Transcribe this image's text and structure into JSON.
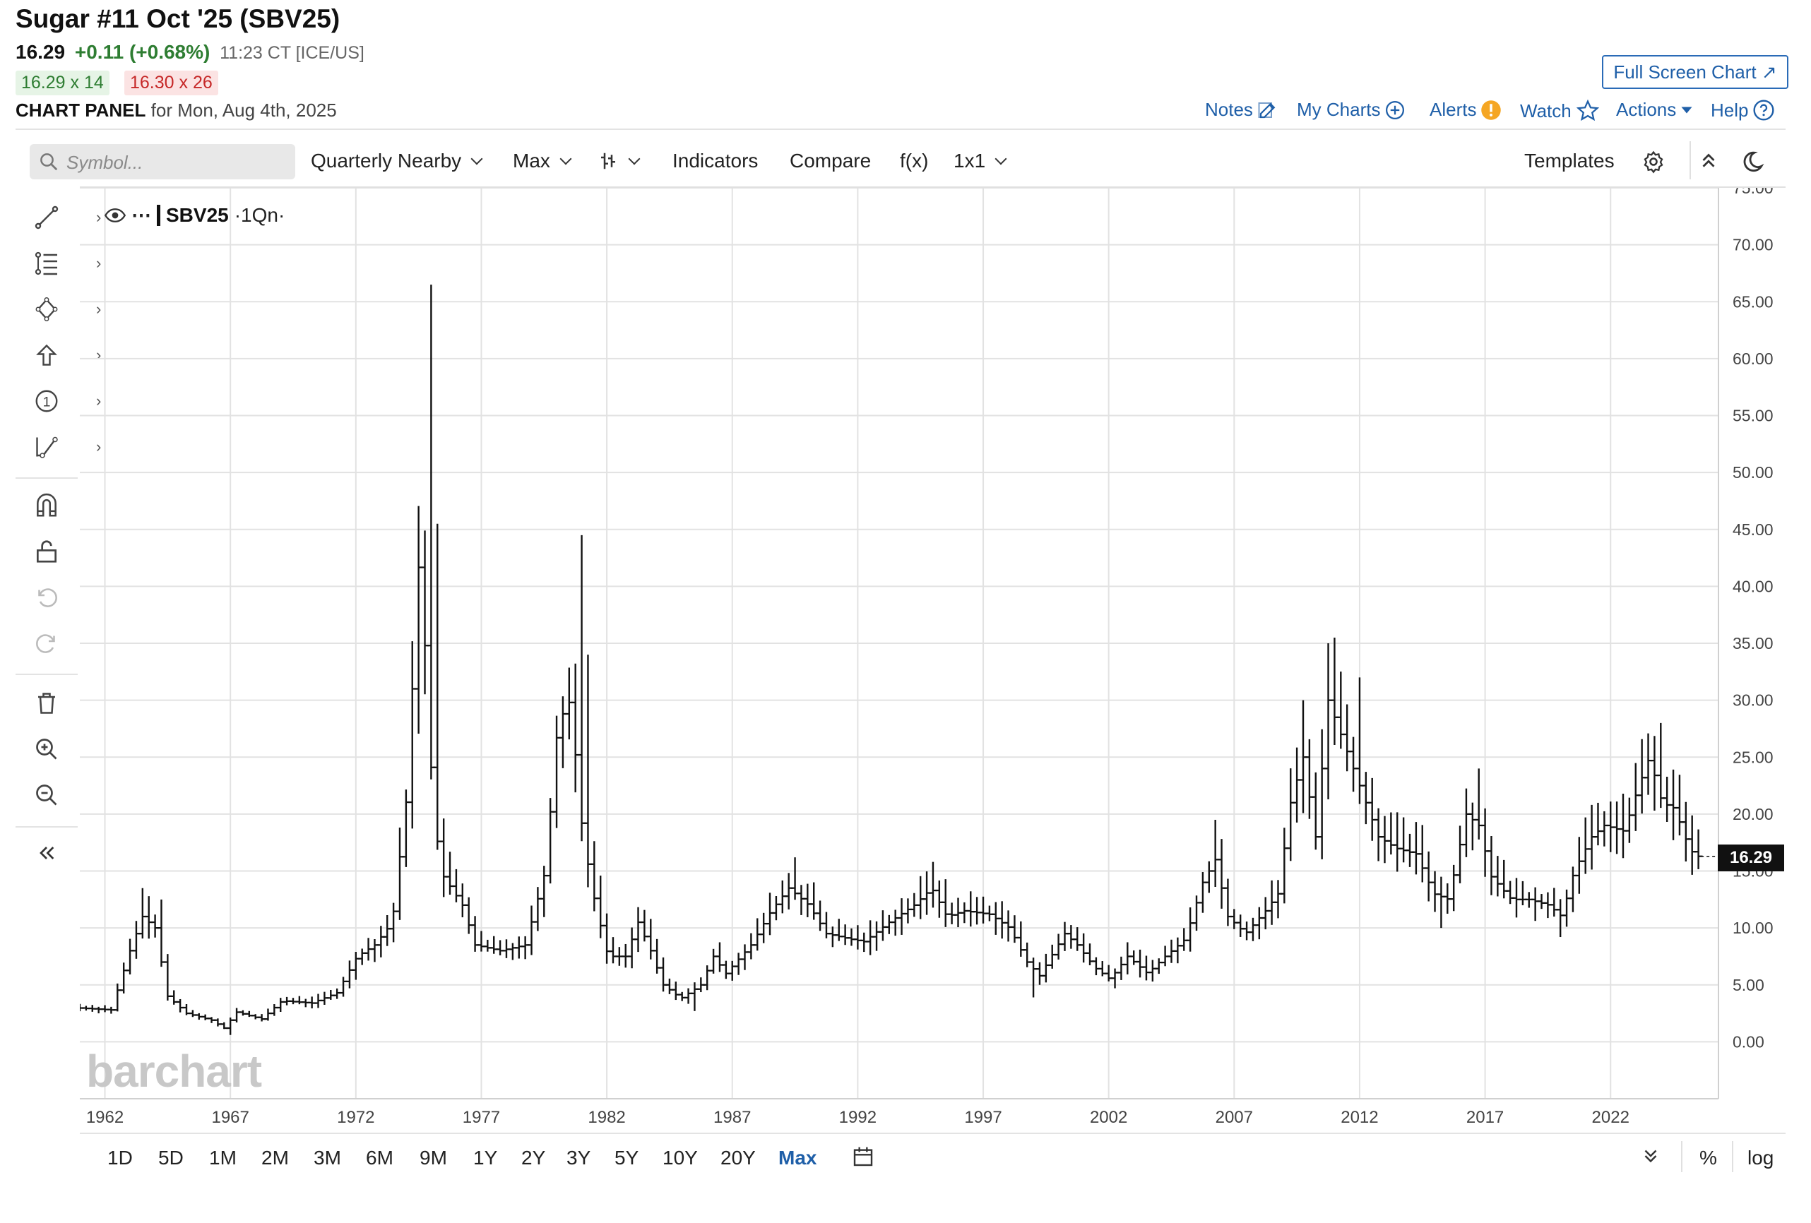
{
  "header": {
    "title": "Sugar #11 Oct '25 (SBV25)",
    "last": "16.29",
    "change": "+0.11 (+0.68%)",
    "time": "11:23 CT [ICE/US]",
    "bid": "16.29 x 14",
    "ask": "16.30 x 26",
    "panel_label": "CHART PANEL",
    "panel_date": "for Mon, Aug 4th, 2025",
    "full_screen": "Full Screen Chart",
    "links": {
      "notes": "Notes",
      "my_charts": "My Charts",
      "alerts": "Alerts",
      "watch": "Watch",
      "actions": "Actions",
      "help": "Help"
    }
  },
  "toolbar": {
    "symbol_placeholder": "Symbol...",
    "period": "Quarterly Nearby",
    "range": "Max",
    "indicators": "Indicators",
    "compare": "Compare",
    "fx": "f(x)",
    "layout": "1x1",
    "templates": "Templates"
  },
  "legend": {
    "symbol": "SBV25",
    "interval": "·1Qn·"
  },
  "price_tag": "16.29",
  "watermark": "barchart",
  "bottom": {
    "ranges": [
      "1D",
      "5D",
      "1M",
      "2M",
      "3M",
      "6M",
      "9M",
      "1Y",
      "2Y",
      "3Y",
      "5Y",
      "10Y",
      "20Y",
      "Max"
    ],
    "active": "Max",
    "percent": "%",
    "log": "log"
  },
  "icons": [
    "search-icon",
    "edit-icon",
    "plus-circle-icon",
    "alert-icon",
    "star-icon",
    "caret-down-icon",
    "help-icon",
    "bar-style-icon",
    "gear-icon",
    "collapse-icon",
    "moon-icon",
    "eye-icon",
    "calendar-icon",
    "trend-line-icon",
    "fib-icon",
    "shape-icon",
    "arrow-icon",
    "number-icon",
    "measure-icon",
    "magnet-icon",
    "lock-icon",
    "undo-icon",
    "redo-icon",
    "trash-icon",
    "zoom-in-icon",
    "zoom-out-icon",
    "chevron-left-icon"
  ],
  "colors": {
    "accent": "#1f5fa8",
    "up": "#2e7d32",
    "down": "#c62828",
    "bars": "#111111"
  },
  "chart_data": {
    "type": "bar",
    "style": "OHLC",
    "symbol": "SBV25",
    "interval": "quarterly",
    "ylim": [
      -5,
      75
    ],
    "y_ticks": [
      0,
      5,
      10,
      15,
      20,
      25,
      30,
      35,
      40,
      45,
      50,
      55,
      60,
      65,
      70,
      75
    ],
    "x_ticks": [
      "1962",
      "1967",
      "1972",
      "1977",
      "1982",
      "1987",
      "1992",
      "1997",
      "2002",
      "2007",
      "2012",
      "2017",
      "2022"
    ],
    "x_range": [
      1961.0,
      2026.3
    ],
    "last_price": 16.29,
    "grid": true,
    "anchors": [
      [
        1961.0,
        3.0
      ],
      [
        1962.5,
        2.8
      ],
      [
        1963.25,
        8.0
      ],
      [
        1963.75,
        11.0
      ],
      [
        1964.25,
        10.0
      ],
      [
        1964.75,
        4.0
      ],
      [
        1965.5,
        2.5
      ],
      [
        1966.5,
        1.9
      ],
      [
        1967.0,
        1.2
      ],
      [
        1967.5,
        2.6
      ],
      [
        1968.5,
        2.0
      ],
      [
        1969.3,
        3.6
      ],
      [
        1970.5,
        3.4
      ],
      [
        1971.5,
        4.3
      ],
      [
        1972.3,
        7.5
      ],
      [
        1973.0,
        8.5
      ],
      [
        1973.7,
        10.5
      ],
      [
        1974.3,
        22.0
      ],
      [
        1974.7,
        40.0
      ],
      [
        1974.85,
        45.0
      ],
      [
        1975.1,
        28.0
      ],
      [
        1975.6,
        15.0
      ],
      [
        1976.5,
        12.0
      ],
      [
        1977.0,
        8.5
      ],
      [
        1978.0,
        8.0
      ],
      [
        1979.0,
        8.5
      ],
      [
        1979.8,
        15.0
      ],
      [
        1980.3,
        28.0
      ],
      [
        1980.8,
        30.0
      ],
      [
        1981.3,
        18.0
      ],
      [
        1981.8,
        12.0
      ],
      [
        1982.3,
        7.5
      ],
      [
        1983.0,
        7.5
      ],
      [
        1983.5,
        10.5
      ],
      [
        1984.0,
        8.0
      ],
      [
        1984.5,
        5.0
      ],
      [
        1985.2,
        3.8
      ],
      [
        1986.0,
        5.0
      ],
      [
        1986.5,
        7.5
      ],
      [
        1987.0,
        6.0
      ],
      [
        1988.0,
        8.5
      ],
      [
        1988.8,
        11.5
      ],
      [
        1989.5,
        13.5
      ],
      [
        1990.3,
        12.0
      ],
      [
        1991.0,
        9.5
      ],
      [
        1992.0,
        9.0
      ],
      [
        1992.5,
        8.8
      ],
      [
        1993.5,
        10.5
      ],
      [
        1994.5,
        12.0
      ],
      [
        1995.2,
        13.5
      ],
      [
        1995.8,
        11.0
      ],
      [
        1996.5,
        11.5
      ],
      [
        1997.5,
        11.2
      ],
      [
        1998.3,
        10.0
      ],
      [
        1999.0,
        7.0
      ],
      [
        1999.5,
        5.8
      ],
      [
        2000.5,
        9.5
      ],
      [
        2001.0,
        8.5
      ],
      [
        2001.7,
        6.5
      ],
      [
        2002.3,
        5.5
      ],
      [
        2003.0,
        7.5
      ],
      [
        2003.8,
        6.0
      ],
      [
        2004.5,
        7.5
      ],
      [
        2005.3,
        9.0
      ],
      [
        2006.0,
        14.0
      ],
      [
        2006.5,
        16.0
      ],
      [
        2007.0,
        11.0
      ],
      [
        2007.7,
        9.5
      ],
      [
        2008.5,
        11.5
      ],
      [
        2009.0,
        13.0
      ],
      [
        2009.5,
        21.0
      ],
      [
        2010.0,
        25.0
      ],
      [
        2010.5,
        18.0
      ],
      [
        2011.0,
        30.0
      ],
      [
        2011.5,
        27.0
      ],
      [
        2012.0,
        24.0
      ],
      [
        2012.5,
        21.0
      ],
      [
        2013.0,
        18.0
      ],
      [
        2013.7,
        17.0
      ],
      [
        2014.5,
        16.5
      ],
      [
        2015.2,
        13.0
      ],
      [
        2015.8,
        12.5
      ],
      [
        2016.5,
        20.0
      ],
      [
        2017.0,
        19.0
      ],
      [
        2017.5,
        14.5
      ],
      [
        2018.3,
        12.5
      ],
      [
        2019.0,
        12.5
      ],
      [
        2019.8,
        12.0
      ],
      [
        2020.3,
        11.0
      ],
      [
        2020.8,
        15.0
      ],
      [
        2021.5,
        18.0
      ],
      [
        2022.0,
        19.0
      ],
      [
        2022.8,
        18.5
      ],
      [
        2023.3,
        22.0
      ],
      [
        2023.8,
        25.0
      ],
      [
        2024.3,
        21.0
      ],
      [
        2024.8,
        20.5
      ],
      [
        2025.3,
        17.5
      ],
      [
        2025.6,
        16.29
      ]
    ],
    "spikes": [
      [
        1963.4,
        13.5
      ],
      [
        1964.2,
        12.5
      ],
      [
        1974.9,
        66.5
      ],
      [
        1975.25,
        45.5
      ],
      [
        1980.9,
        44.5
      ],
      [
        1981.2,
        34.0
      ],
      [
        1989.5,
        16.2
      ],
      [
        1995.0,
        15.8
      ],
      [
        2006.2,
        19.5
      ],
      [
        2009.7,
        30.0
      ],
      [
        2010.8,
        35.0
      ],
      [
        2011.1,
        35.5
      ],
      [
        2011.9,
        32.0
      ],
      [
        2016.7,
        24.0
      ],
      [
        2023.5,
        26.5
      ],
      [
        2023.9,
        28.0
      ]
    ],
    "dips": [
      [
        1967.0,
        0.6
      ],
      [
        1985.4,
        2.7
      ],
      [
        1999.0,
        3.9
      ],
      [
        2002.3,
        4.7
      ],
      [
        2019.9,
        9.2
      ],
      [
        2015.3,
        10.0
      ]
    ]
  }
}
